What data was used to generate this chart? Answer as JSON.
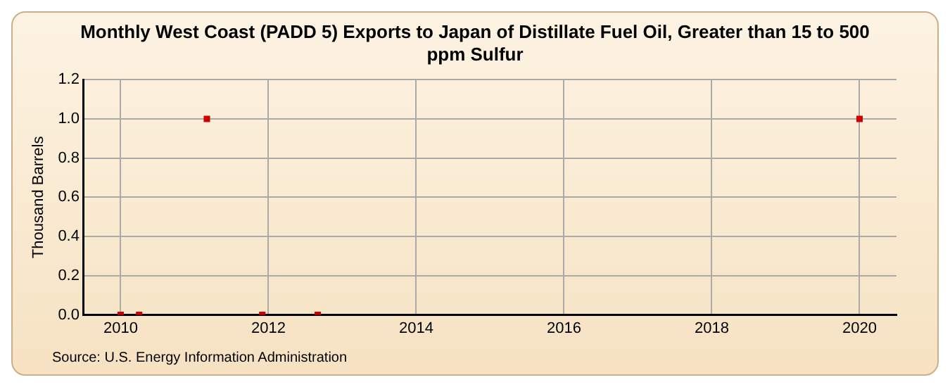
{
  "chart_data": {
    "type": "scatter",
    "title": "Monthly West Coast (PADD 5) Exports to Japan of Distillate Fuel Oil, Greater than 15 to 500 ppm Sulfur",
    "ylabel": "Thousand Barrels",
    "x": [
      "2010-01",
      "2010-04",
      "2011-03",
      "2011-12",
      "2012-09",
      "2020-01"
    ],
    "series": [
      {
        "color": "#cc0000",
        "values": [
          0,
          0,
          1,
          0,
          0,
          1
        ]
      }
    ],
    "xlim": [
      "2009-07",
      "2020-07"
    ],
    "xticks": [
      "2010",
      "2012",
      "2014",
      "2016",
      "2018",
      "2020"
    ],
    "ylim": [
      0,
      1.2
    ],
    "yticks": [
      {
        "value": 0,
        "label": "0.0"
      },
      {
        "value": 0.2,
        "label": "0.2"
      },
      {
        "value": 0.4,
        "label": "0.4"
      },
      {
        "value": 0.6,
        "label": "0.6"
      },
      {
        "value": 0.8,
        "label": "0.8"
      },
      {
        "value": 1,
        "label": "1.0"
      },
      {
        "value": 1.2,
        "label": "1.2"
      }
    ],
    "grid": true,
    "legend": false,
    "marker": "square",
    "annotations": [
      "Source: U.S. Energy Information Administration"
    ]
  }
}
